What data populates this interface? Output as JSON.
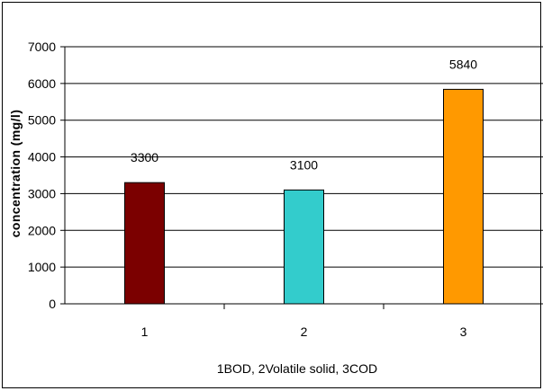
{
  "chart_data": {
    "type": "bar",
    "categories": [
      "1",
      "2",
      "3"
    ],
    "values": [
      3300,
      3100,
      5840
    ],
    "data_labels": [
      "3300",
      "3100",
      "5840"
    ],
    "colors": [
      "#7b0000",
      "#33cccc",
      "#ff9900"
    ],
    "title": "",
    "xlabel": "1BOD, 2Volatile solid, 3COD",
    "ylabel": "concentration (mg/l)",
    "ylim": [
      0,
      7000
    ],
    "yticks": [
      0,
      1000,
      2000,
      3000,
      4000,
      5000,
      6000,
      7000
    ],
    "ytick_labels": [
      "0",
      "1000",
      "2000",
      "3000",
      "4000",
      "5000",
      "6000",
      "7000"
    ],
    "grid": true,
    "legend": "none"
  }
}
